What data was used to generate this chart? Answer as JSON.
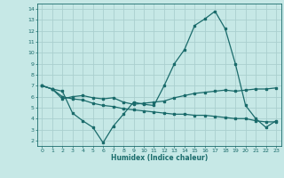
{
  "xlabel": "Humidex (Indice chaleur)",
  "ylabel": "",
  "bg_color": "#c6e8e6",
  "grid_color": "#aacfcf",
  "line_color": "#1a6b6b",
  "xlim": [
    -0.5,
    23.5
  ],
  "ylim": [
    1.5,
    14.5
  ],
  "xticks": [
    0,
    1,
    2,
    3,
    4,
    5,
    6,
    7,
    8,
    9,
    10,
    11,
    12,
    13,
    14,
    15,
    16,
    17,
    18,
    19,
    20,
    21,
    22,
    23
  ],
  "yticks": [
    2,
    3,
    4,
    5,
    6,
    7,
    8,
    9,
    10,
    11,
    12,
    13,
    14
  ],
  "line1_x": [
    0,
    1,
    2,
    3,
    4,
    5,
    6,
    7,
    8,
    9,
    10,
    11,
    12,
    13,
    14,
    15,
    16,
    17,
    18,
    19,
    20,
    21,
    22,
    23
  ],
  "line1_y": [
    7.0,
    6.7,
    6.5,
    4.5,
    3.8,
    3.2,
    1.8,
    3.3,
    4.4,
    5.5,
    5.3,
    5.2,
    7.0,
    9.0,
    10.3,
    12.5,
    13.1,
    13.8,
    12.2,
    9.0,
    5.2,
    4.0,
    3.2,
    3.8
  ],
  "line2_x": [
    0,
    1,
    2,
    3,
    4,
    5,
    6,
    7,
    8,
    9,
    10,
    11,
    12,
    13,
    14,
    15,
    16,
    17,
    18,
    19,
    20,
    21,
    22,
    23
  ],
  "line2_y": [
    7.0,
    6.7,
    5.8,
    6.0,
    6.1,
    5.9,
    5.8,
    5.9,
    5.5,
    5.3,
    5.4,
    5.5,
    5.6,
    5.9,
    6.1,
    6.3,
    6.4,
    6.5,
    6.6,
    6.5,
    6.6,
    6.7,
    6.7,
    6.8
  ],
  "line3_x": [
    0,
    1,
    2,
    3,
    4,
    5,
    6,
    7,
    8,
    9,
    10,
    11,
    12,
    13,
    14,
    15,
    16,
    17,
    18,
    19,
    20,
    21,
    22,
    23
  ],
  "line3_y": [
    7.0,
    6.7,
    6.0,
    5.8,
    5.7,
    5.4,
    5.2,
    5.1,
    4.9,
    4.8,
    4.7,
    4.6,
    4.5,
    4.4,
    4.4,
    4.3,
    4.3,
    4.2,
    4.1,
    4.0,
    4.0,
    3.8,
    3.7,
    3.7
  ]
}
